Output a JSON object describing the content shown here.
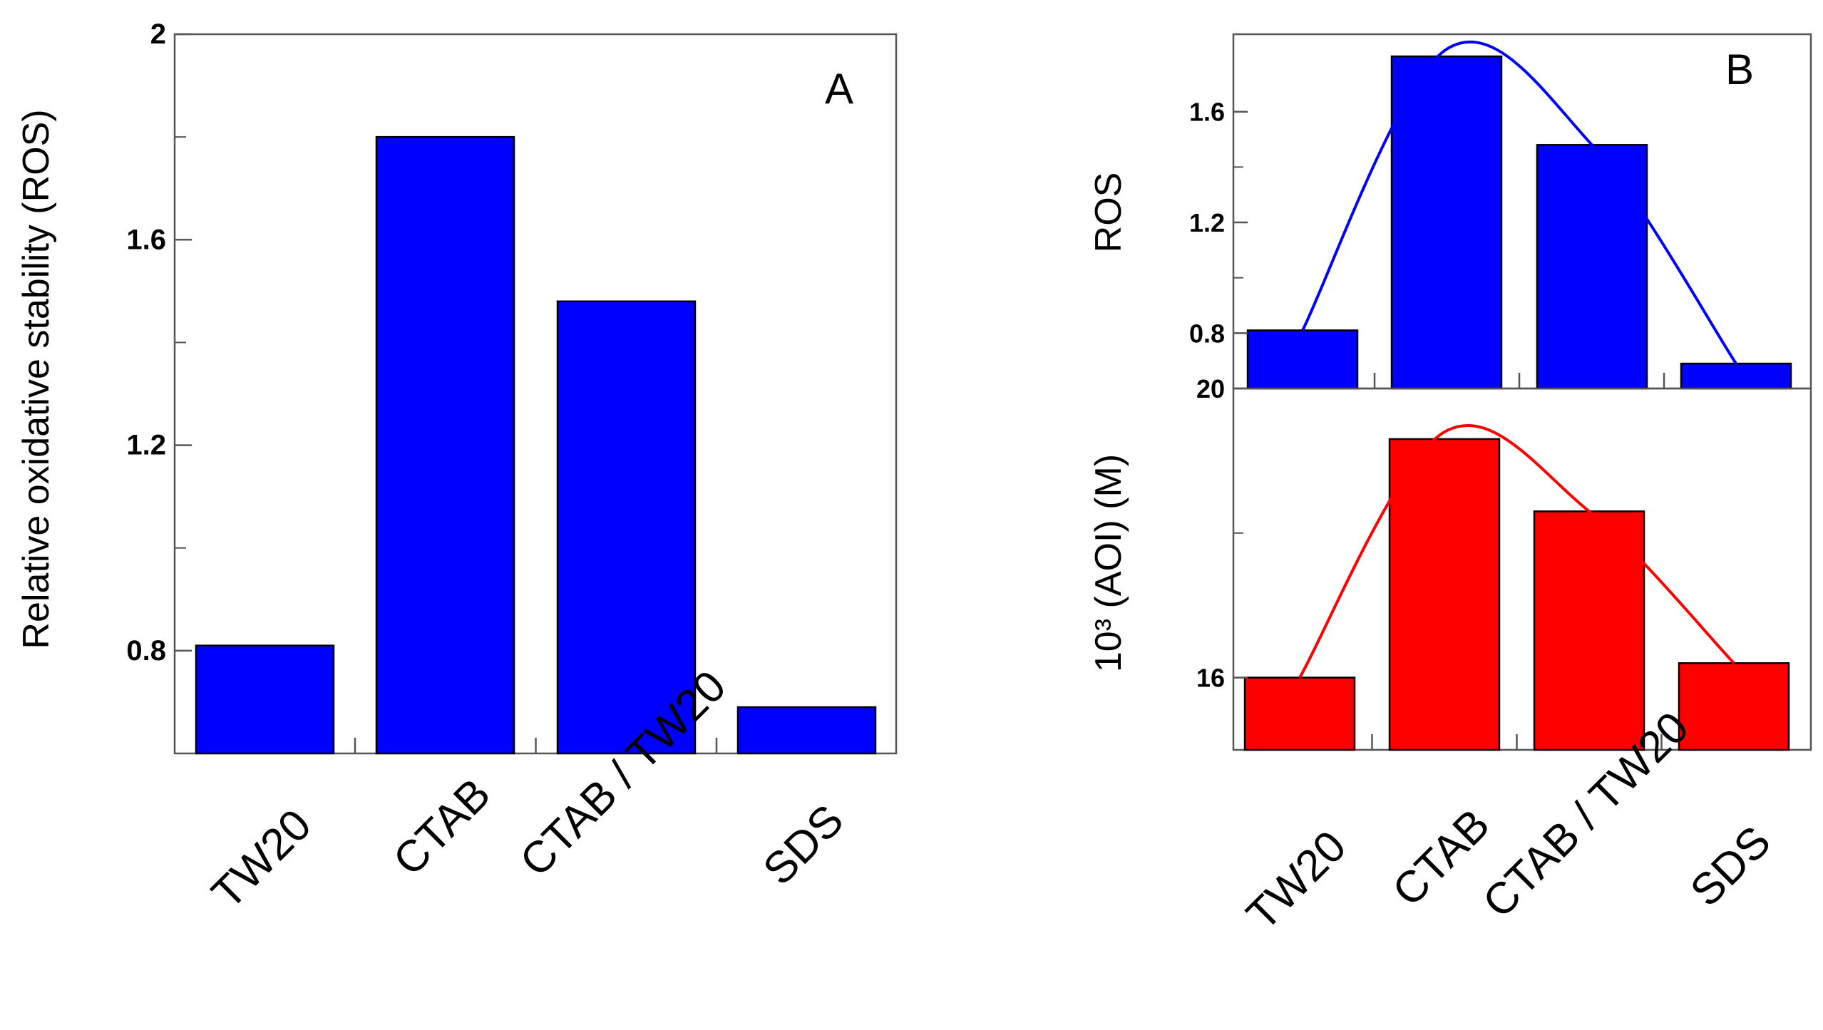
{
  "chart_data": [
    {
      "type": "bar",
      "panel": "A",
      "panel_label": "A",
      "categories": [
        "TW20",
        "CTAB",
        "CTAB / TW20",
        "SDS"
      ],
      "values": [
        0.81,
        1.8,
        1.48,
        0.69
      ],
      "ylabel": "Relative oxidative stability (ROS)",
      "xlabel": "",
      "ylim": [
        0.6,
        2.0
      ],
      "yticks": [
        0.8,
        1.2,
        1.6,
        2.0
      ],
      "ytick_labels": [
        "0.8",
        "1.2",
        "1.6",
        "2"
      ],
      "bar_color": "#0000ff",
      "grid": false
    },
    {
      "type": "bar",
      "panel": "B-top",
      "panel_label": "B",
      "categories": [
        "TW20",
        "CTAB",
        "CTAB / TW20",
        "SDS"
      ],
      "values": [
        0.81,
        1.8,
        1.48,
        0.69
      ],
      "fit_curve": true,
      "ylabel": "ROS",
      "ylim": [
        0.6,
        1.88
      ],
      "yticks": [
        0.8,
        1.2,
        1.6
      ],
      "ytick_labels": [
        "0.8",
        "1.2",
        "1.6"
      ],
      "bar_color": "#0000ff",
      "curve_color": "#0000ff",
      "grid": false
    },
    {
      "type": "bar",
      "panel": "B-bottom",
      "categories": [
        "TW20",
        "CTAB",
        "CTAB / TW20",
        "SDS"
      ],
      "values": [
        16.0,
        19.3,
        18.3,
        16.2
      ],
      "fit_curve": true,
      "ylabel": "10³ (AOI) (M)",
      "ylim": [
        15.0,
        20.0
      ],
      "yticks": [
        16,
        20
      ],
      "ytick_labels": [
        "16",
        "20"
      ],
      "bar_color": "#ff0000",
      "curve_color": "#ff0000",
      "grid": false
    }
  ]
}
